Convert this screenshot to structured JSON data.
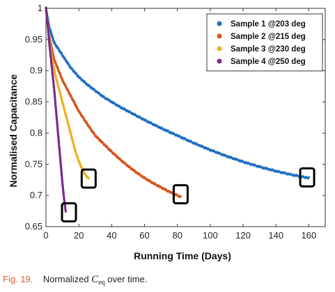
{
  "chart_data": {
    "type": "scatter",
    "xlabel": "Running Time (Days)",
    "ylabel": "Normalised Capacitance",
    "xlim": [
      0,
      170
    ],
    "ylim": [
      0.65,
      1.0
    ],
    "xticks": [
      "0",
      "20",
      "40",
      "60",
      "80",
      "100",
      "120",
      "140",
      "160"
    ],
    "yticks": [
      "0.65",
      "0.7",
      "0.75",
      "0.8",
      "0.85",
      "0.9",
      "0.95",
      "1"
    ],
    "legend_position": "top-right",
    "grid": false,
    "series": [
      {
        "name": "Sample 1 @203 deg",
        "color": "#1f6fc3",
        "x": [
          0,
          2,
          5,
          10,
          15,
          20,
          25,
          30,
          35,
          40,
          45,
          50,
          55,
          60,
          70,
          80,
          90,
          100,
          110,
          120,
          130,
          140,
          150,
          160
        ],
        "y": [
          1.0,
          0.97,
          0.945,
          0.925,
          0.905,
          0.89,
          0.878,
          0.868,
          0.858,
          0.85,
          0.842,
          0.835,
          0.828,
          0.821,
          0.808,
          0.796,
          0.784,
          0.773,
          0.763,
          0.754,
          0.746,
          0.739,
          0.733,
          0.728
        ]
      },
      {
        "name": "Sample 2 @215 deg",
        "color": "#d6541e",
        "x": [
          0,
          2,
          5,
          10,
          15,
          20,
          25,
          30,
          35,
          40,
          45,
          50,
          55,
          60,
          65,
          70,
          75,
          80,
          82
        ],
        "y": [
          1.0,
          0.955,
          0.918,
          0.885,
          0.86,
          0.835,
          0.815,
          0.796,
          0.783,
          0.77,
          0.758,
          0.747,
          0.737,
          0.728,
          0.72,
          0.713,
          0.706,
          0.7,
          0.698
        ]
      },
      {
        "name": "Sample 3 @230 deg",
        "color": "#f0b020",
        "x": [
          0,
          2,
          4,
          6,
          8,
          10,
          12,
          14,
          16,
          18,
          20,
          22,
          24,
          26
        ],
        "y": [
          1.0,
          0.95,
          0.915,
          0.89,
          0.87,
          0.85,
          0.83,
          0.81,
          0.79,
          0.77,
          0.755,
          0.742,
          0.733,
          0.727
        ]
      },
      {
        "name": "Sample 4 @250 deg",
        "color": "#7b2a8c",
        "x": [
          0,
          1,
          2,
          3,
          4,
          5,
          6,
          7,
          8,
          9,
          10,
          11,
          12
        ],
        "y": [
          1.0,
          0.975,
          0.945,
          0.92,
          0.895,
          0.87,
          0.84,
          0.81,
          0.78,
          0.75,
          0.72,
          0.695,
          0.675
        ]
      }
    ],
    "annotations": [
      {
        "type": "box",
        "x": 14,
        "y": 0.673
      },
      {
        "type": "box",
        "x": 26,
        "y": 0.727
      },
      {
        "type": "box",
        "x": 82,
        "y": 0.702
      },
      {
        "type": "box",
        "x": 159,
        "y": 0.729
      }
    ]
  },
  "caption": {
    "fig_label": "Fig. 19.",
    "text_before": "Normalized ",
    "symbol": "C",
    "subscript": "eq",
    "text_after": " over time."
  }
}
